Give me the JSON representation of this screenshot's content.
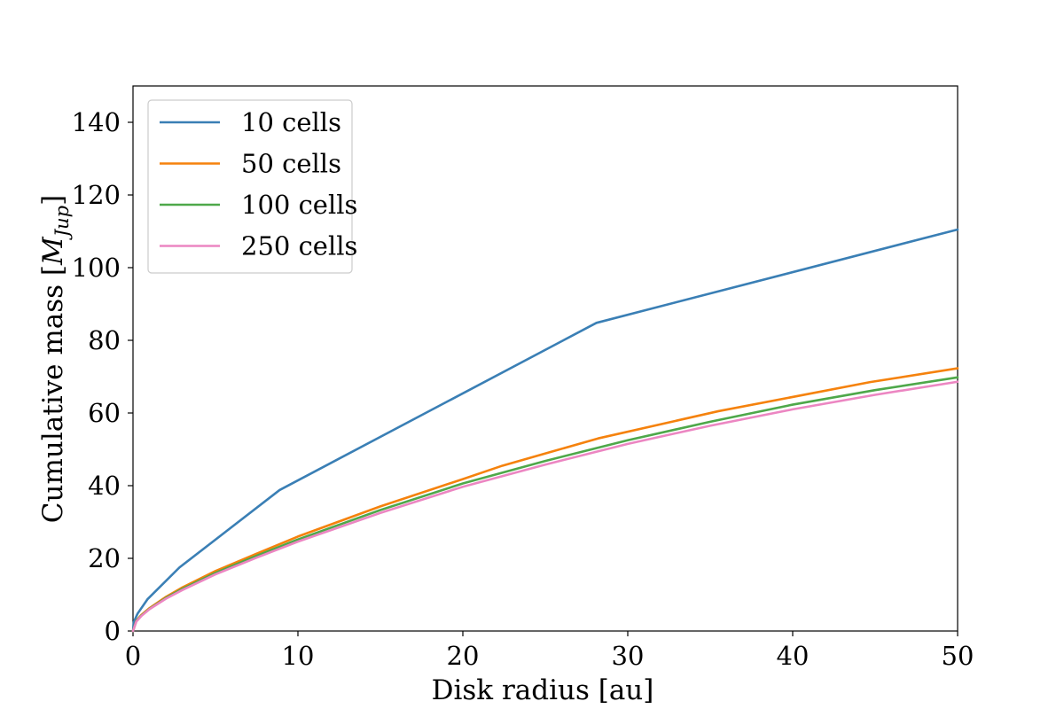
{
  "chart_data": {
    "type": "line",
    "title": "",
    "xlabel": "Disk radius [au]",
    "ylabel": "Cumulative mass [",
    "ylabel_math": "M",
    "ylabel_subscript": "Jup",
    "ylabel_close": "]",
    "xlim": [
      0,
      50
    ],
    "ylim": [
      0,
      150
    ],
    "xticks": [
      0,
      10,
      20,
      30,
      40,
      50
    ],
    "yticks": [
      0,
      20,
      40,
      60,
      80,
      100,
      120,
      140
    ],
    "grid": false,
    "legend_position": "top-left",
    "series": [
      {
        "name": "10 cells",
        "color": "#3a7fb5",
        "x": [
          0,
          0.05,
          0.28,
          0.89,
          2.82,
          8.89,
          28.1,
          50
        ],
        "y": [
          0,
          2.5,
          4.8,
          8.8,
          17.5,
          38.8,
          84.8,
          110.5
        ]
      },
      {
        "name": "50 cells",
        "color": "#f5820d",
        "x": [
          0,
          0.2,
          0.5,
          1.0,
          2.0,
          3.0,
          5.0,
          7.5,
          10.0,
          15.0,
          20.0,
          22.4,
          28.2,
          35.5,
          44.7,
          50.0
        ],
        "y": [
          0,
          2.8,
          4.4,
          6.3,
          9.4,
          12.0,
          16.5,
          21.3,
          26.0,
          34.3,
          41.8,
          45.5,
          53.0,
          60.5,
          68.5,
          72.3
        ]
      },
      {
        "name": "100 cells",
        "color": "#4ea84a",
        "x": [
          0,
          0.2,
          0.5,
          1.0,
          2.0,
          3.0,
          5.0,
          7.5,
          10.0,
          15.0,
          20.0,
          25.0,
          30.0,
          35.0,
          40.0,
          45.0,
          50.0
        ],
        "y": [
          0,
          2.7,
          4.2,
          6.1,
          9.1,
          11.6,
          16.0,
          20.7,
          25.2,
          33.3,
          40.6,
          46.8,
          52.5,
          57.6,
          62.3,
          66.3,
          69.8
        ]
      },
      {
        "name": "250 cells",
        "color": "#ec86c2",
        "x": [
          0,
          0.2,
          0.5,
          1.0,
          2.0,
          3.0,
          5.0,
          7.5,
          10.0,
          15.0,
          20.0,
          25.0,
          30.0,
          35.0,
          40.0,
          45.0,
          50.0
        ],
        "y": [
          0,
          2.6,
          4.1,
          6.0,
          8.9,
          11.3,
          15.6,
          20.2,
          24.6,
          32.5,
          39.7,
          45.8,
          51.5,
          56.5,
          61.0,
          65.0,
          68.6
        ]
      }
    ]
  }
}
